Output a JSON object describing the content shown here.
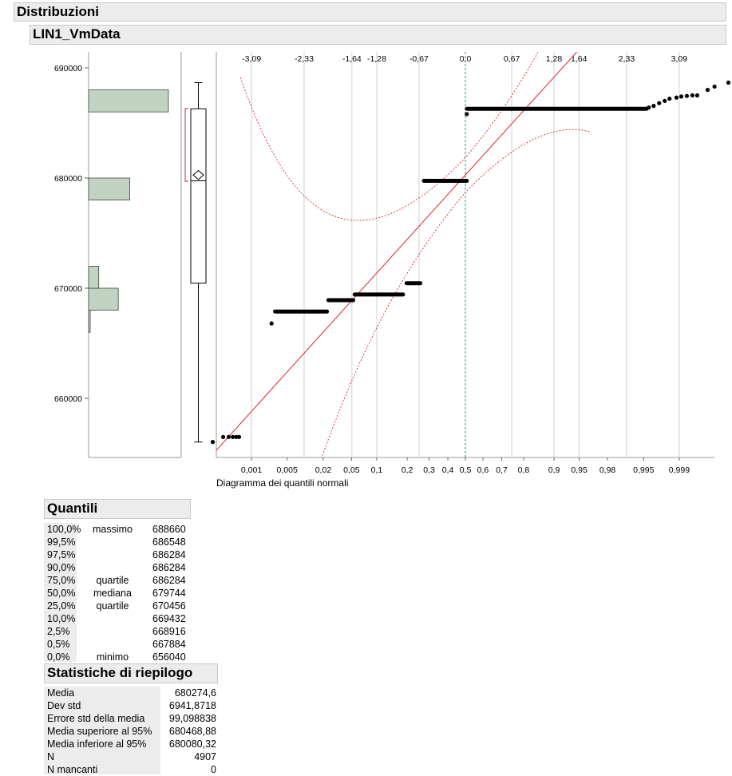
{
  "header": {
    "title": "Distribuzioni",
    "variable": "LIN1_VmData"
  },
  "colors": {
    "bars": "#c2d3c4",
    "fit_line": "#e0232b",
    "mean_line": "#1a9c8c",
    "grid": "#cfcfcf",
    "points": "#000000"
  },
  "chart_data": {
    "type": "histogram + box plot + normal quantile plot",
    "variable": "LIN1_VmData",
    "ylim": [
      654500,
      690500
    ],
    "y_ticks": [
      660000,
      670000,
      680000,
      690000
    ],
    "y_tick_labels": [
      "660000",
      "670000",
      "680000",
      "690000"
    ],
    "histogram_bins": [
      {
        "from": 666000,
        "to": 668000,
        "count": 12
      },
      {
        "from": 668000,
        "to": 670000,
        "count": 220
      },
      {
        "from": 670000,
        "to": 672000,
        "count": 75
      },
      {
        "from": 678000,
        "to": 680000,
        "count": 305
      },
      {
        "from": 686000,
        "to": 688000,
        "count": 592
      }
    ],
    "box_plot": {
      "min": 656040,
      "q1": 670456,
      "median": 679744,
      "q3": 686284,
      "max": 688660,
      "mean": 680274.6,
      "mean_ci": [
        680080.32,
        680468.88
      ],
      "shortest_half": [
        679700,
        686300
      ]
    },
    "quantile_plot": {
      "xlabel": "Diagramma dei quantili normali",
      "top_axis_labels": [
        "-3,09",
        "-2,33",
        "-1,64",
        "-1,28",
        "-0,67",
        "0,0",
        "0,67",
        "1,28",
        "1,64",
        "2,33",
        "3,09"
      ],
      "bottom_axis_labels": [
        "0,001",
        "0,005",
        "0,02",
        "0,05",
        "0,1",
        "0,2",
        "0,3",
        "0,4",
        "0,5",
        "0,6",
        "0,7",
        "0,8",
        "0,9",
        "0,95",
        "0,98",
        "0,995",
        "0,999"
      ],
      "fit": {
        "mean": 680274.6,
        "sd": 6941.8718
      },
      "points": [
        {
          "z": -3.65,
          "y": 656040
        },
        {
          "z": -3.5,
          "y": 656500
        },
        {
          "z": -3.42,
          "y": 656500
        },
        {
          "z": -3.36,
          "y": 656500
        },
        {
          "z": -3.31,
          "y": 656500
        },
        {
          "z": -3.27,
          "y": 656500
        },
        {
          "z": -2.8,
          "y": 666800
        },
        {
          "z_from": -2.75,
          "z_to": -2.0,
          "y": 667884
        },
        {
          "z_from": -1.98,
          "z_to": -1.62,
          "y": 668916
        },
        {
          "z_from": -1.6,
          "z_to": -0.9,
          "y": 669432
        },
        {
          "z_from": -0.85,
          "z_to": -0.65,
          "y": 670456
        },
        {
          "z_from": -0.6,
          "z_to": 0.02,
          "y": 679744
        },
        {
          "z": 0.02,
          "y": 685800
        },
        {
          "z_from": 0.02,
          "z_to": 2.62,
          "y": 686284
        },
        {
          "z": 2.65,
          "y": 686400
        },
        {
          "z": 2.72,
          "y": 686548
        },
        {
          "z": 2.8,
          "y": 686800
        },
        {
          "z": 2.88,
          "y": 687000
        },
        {
          "z": 2.95,
          "y": 687200
        },
        {
          "z": 3.05,
          "y": 687300
        },
        {
          "z": 3.12,
          "y": 687400
        },
        {
          "z": 3.2,
          "y": 687450
        },
        {
          "z": 3.28,
          "y": 687500
        },
        {
          "z": 3.35,
          "y": 687500
        },
        {
          "z": 3.5,
          "y": 688000
        },
        {
          "z": 3.6,
          "y": 688300
        },
        {
          "z": 3.8,
          "y": 688660
        }
      ]
    }
  },
  "quantiles": {
    "title": "Quantili",
    "rows": [
      {
        "pct": "100,0%",
        "label": "massimo",
        "value": "688660"
      },
      {
        "pct": "99,5%",
        "label": "",
        "value": "686548"
      },
      {
        "pct": "97,5%",
        "label": "",
        "value": "686284"
      },
      {
        "pct": "90,0%",
        "label": "",
        "value": "686284"
      },
      {
        "pct": "75,0%",
        "label": "quartile",
        "value": "686284"
      },
      {
        "pct": "50,0%",
        "label": "mediana",
        "value": "679744"
      },
      {
        "pct": "25,0%",
        "label": "quartile",
        "value": "670456"
      },
      {
        "pct": "10,0%",
        "label": "",
        "value": "669432"
      },
      {
        "pct": "2,5%",
        "label": "",
        "value": "668916"
      },
      {
        "pct": "0,5%",
        "label": "",
        "value": "667884"
      },
      {
        "pct": "0,0%",
        "label": "minimo",
        "value": "656040"
      }
    ]
  },
  "summary": {
    "title": "Statistiche di riepilogo",
    "rows": [
      {
        "label": "Media",
        "value": "680274,6"
      },
      {
        "label": "Dev std",
        "value": "6941,8718"
      },
      {
        "label": "Errore std della media",
        "value": "99,098838"
      },
      {
        "label": "Media superiore al 95%",
        "value": "680468,88"
      },
      {
        "label": "Media inferiore al 95%",
        "value": "680080,32"
      },
      {
        "label": "N",
        "value": "4907"
      },
      {
        "label": "N mancanti",
        "value": "0"
      }
    ]
  }
}
